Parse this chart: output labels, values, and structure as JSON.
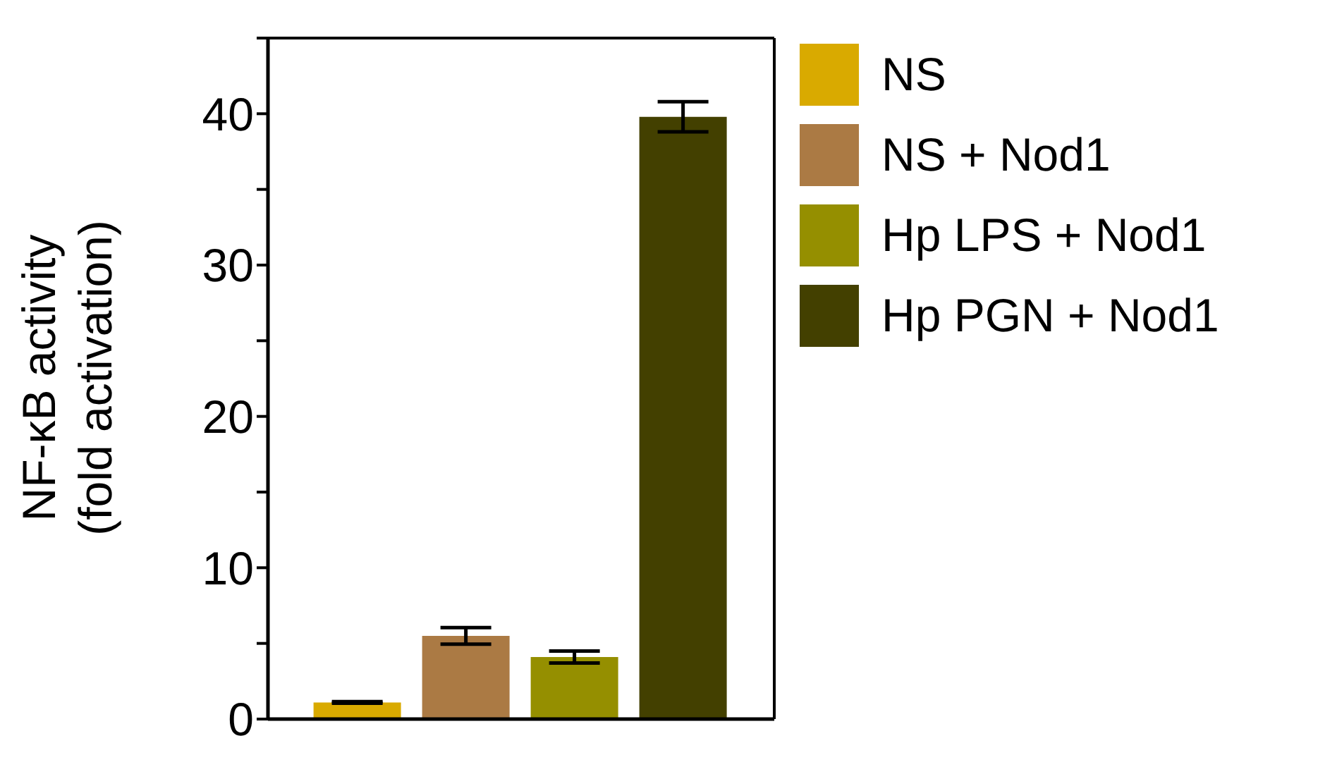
{
  "chart_data": {
    "type": "bar",
    "ylabel": "NF-κB activity\n(fold activation)",
    "categories": [
      null
    ],
    "series": [
      {
        "name": "NS",
        "color": "#d9aa00",
        "values": [
          1.1
        ],
        "errors": [
          0.05
        ]
      },
      {
        "name": "NS + Nod1",
        "color": "#ab7a44",
        "values": [
          5.5
        ],
        "errors": [
          0.55
        ]
      },
      {
        "name": "Hp LPS + Nod1",
        "color": "#958f00",
        "values": [
          4.1
        ],
        "errors": [
          0.4
        ]
      },
      {
        "name": "Hp PGN + Nod1",
        "color": "#434000",
        "values": [
          39.8
        ],
        "errors": [
          1.0
        ]
      }
    ],
    "ylim": [
      0,
      45
    ],
    "yticks": [
      0,
      {
        "value": 5,
        "label": null
      },
      10,
      {
        "value": 15,
        "label": null
      },
      20,
      {
        "value": 25,
        "label": null
      },
      30,
      {
        "value": 35,
        "label": null
      },
      40,
      {
        "value": 45,
        "label": null
      }
    ],
    "legend": "right",
    "grid": false
  }
}
